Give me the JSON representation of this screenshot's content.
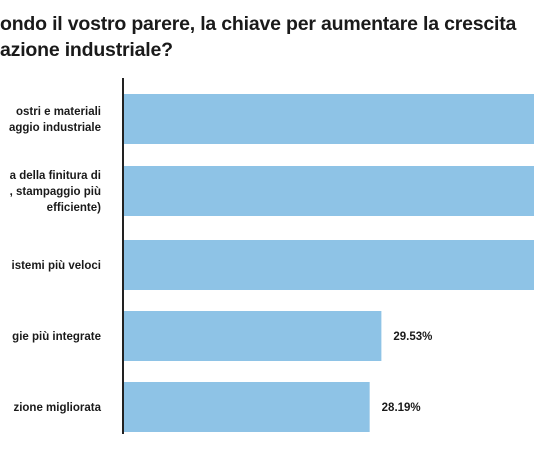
{
  "title_lines": [
    "ondo il vostro parere, la chiave per aumentare la crescita",
    "azione industriale?"
  ],
  "colors": {
    "bar": "#8ec3e6",
    "axis": "#222222",
    "text": "#1a1a1a"
  },
  "chart_data": {
    "type": "bar",
    "orientation": "horizontal",
    "categories": [
      [
        "ostri e materiali",
        "aggio industriale"
      ],
      [
        "a della finitura di",
        ", stampaggio più",
        "efficiente)"
      ],
      [
        "istemi più veloci"
      ],
      [
        "gie più integrate"
      ],
      [
        "zione migliorata"
      ]
    ],
    "values": [
      null,
      null,
      null,
      29.53,
      28.19
    ],
    "value_labels": [
      "",
      "",
      "",
      "29.53%",
      "28.19%"
    ],
    "note": "first three bars extend beyond the visible crop; their value labels are not visible",
    "unit": "%",
    "xlim": [
      0,
      52.0
    ],
    "grid": false,
    "legend": "none"
  }
}
